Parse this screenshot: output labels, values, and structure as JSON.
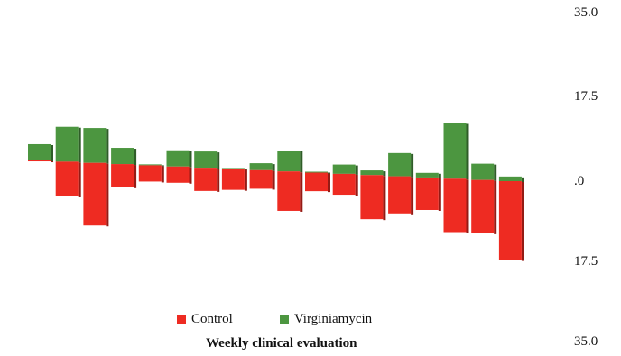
{
  "chart_data": {
    "type": "bar",
    "orientation": "vertical",
    "xlabel": "Weekly clinical evaluation",
    "yticks": [
      "35.0",
      "17.5",
      ".0",
      "17.5",
      "35.0"
    ],
    "ylim": [
      -35,
      35
    ],
    "series": [
      {
        "name": "Control",
        "color": "#ee2b22",
        "values": [
          0.2,
          7.5,
          13.5,
          5.0,
          3.5,
          3.5,
          5.0,
          4.5,
          4.0,
          8.5,
          4.0,
          4.5,
          9.5,
          8.0,
          7.0,
          11.5,
          11.5,
          17.0
        ]
      },
      {
        "name": "Virginiamycin",
        "color": "#4c9640",
        "values": [
          3.5,
          7.5,
          7.5,
          3.5,
          0.2,
          3.5,
          3.5,
          0.2,
          1.5,
          4.5,
          0.2,
          2.0,
          1.0,
          5.0,
          1.0,
          12.0,
          3.5,
          1.0
        ]
      }
    ],
    "legend_position": "bottom"
  }
}
